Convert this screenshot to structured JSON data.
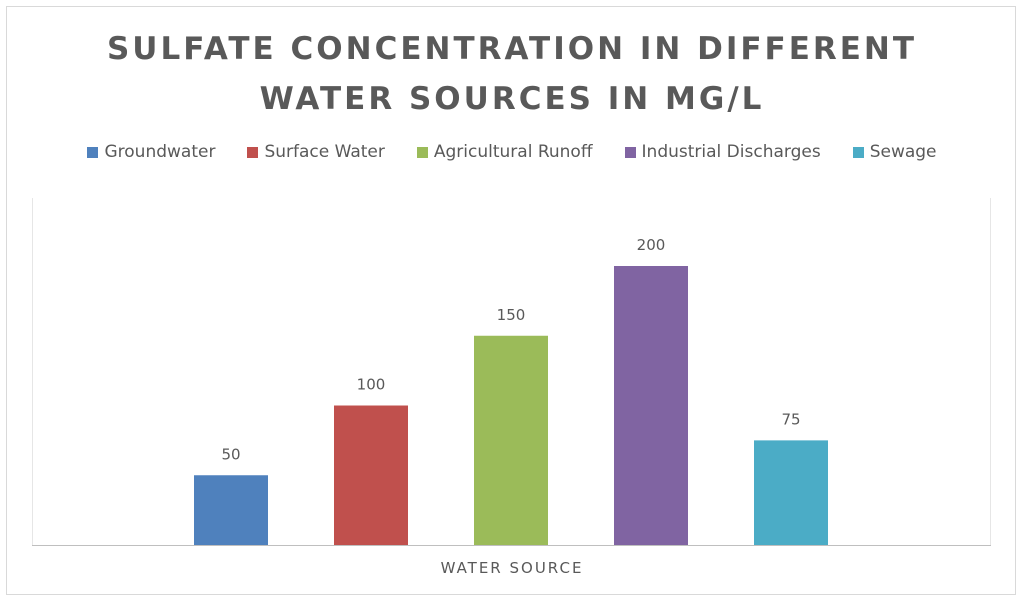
{
  "chart_data": {
    "type": "bar",
    "title": "SULFATE CONCENTRATION IN DIFFERENT WATER SOURCES IN MG/L",
    "title_lines": [
      "SULFATE CONCENTRATION IN DIFFERENT",
      "WATER SOURCES IN MG/L"
    ],
    "xlabel": "WATER SOURCE",
    "ylabel": "",
    "categories": [
      "Groundwater",
      "Surface Water",
      "Agricultural Runoff",
      "Industrial Discharges",
      "Sewage"
    ],
    "values": [
      50,
      100,
      150,
      200,
      75
    ],
    "colors": [
      "#4f81bd",
      "#c0504d",
      "#9bbb59",
      "#8064a2",
      "#4bacc6"
    ],
    "data_labels": [
      "50",
      "100",
      "150",
      "200",
      "75"
    ],
    "ylim": [
      0,
      250
    ],
    "grid": false,
    "legend_position": "top"
  }
}
